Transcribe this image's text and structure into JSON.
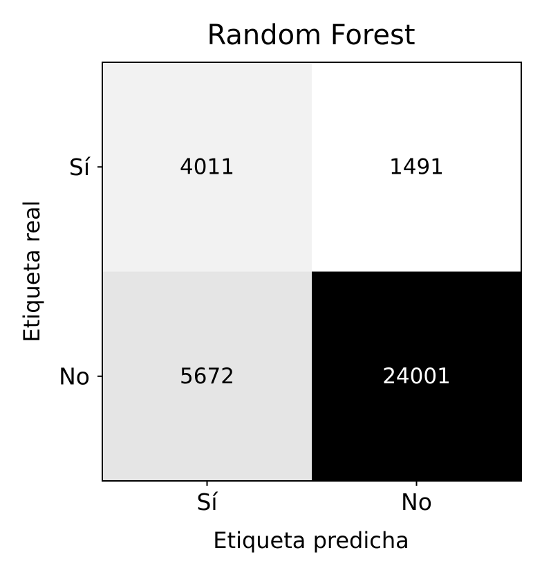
{
  "chart_data": {
    "type": "heatmap",
    "title": "Random Forest",
    "xlabel": "Etiqueta predicha",
    "ylabel": "Etiqueta real",
    "x_categories": [
      "Sí",
      "No"
    ],
    "y_categories": [
      "Sí",
      "No"
    ],
    "values": [
      [
        4011,
        1491
      ],
      [
        5672,
        24001
      ]
    ],
    "colormap": "Greys",
    "color_low": "#ffffff",
    "color_high": "#000000",
    "grid": false,
    "legend": "none"
  }
}
